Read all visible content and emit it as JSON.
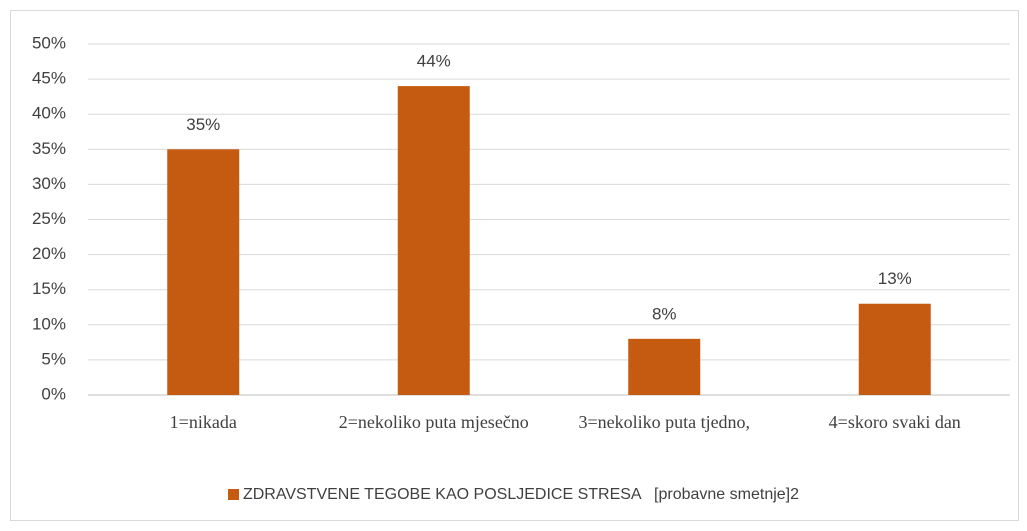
{
  "chart_data": {
    "type": "bar",
    "categories": [
      "1=nikada",
      "2=nekoliko puta mjesečno",
      "3=nekoliko puta tjedno,",
      "4=skoro svaki dan"
    ],
    "series": [
      {
        "name": "ZDRAVSTVENE TEGOBE KAO POSLJEDICE STRESA   [probavne smetnje]2",
        "color": "#c55a11",
        "values": [
          35,
          44,
          8,
          13
        ],
        "value_labels": [
          "35%",
          "44%",
          "8%",
          "13%"
        ]
      }
    ],
    "ylim": [
      0,
      50
    ],
    "yticks": [
      {
        "value": 0,
        "label": "0%"
      },
      {
        "value": 5,
        "label": "5%"
      },
      {
        "value": 10,
        "label": "10%"
      },
      {
        "value": 15,
        "label": "15%"
      },
      {
        "value": 20,
        "label": "20%"
      },
      {
        "value": 25,
        "label": "25%"
      },
      {
        "value": 30,
        "label": "30%"
      },
      {
        "value": 35,
        "label": "35%"
      },
      {
        "value": 40,
        "label": "40%"
      },
      {
        "value": 45,
        "label": "45%"
      },
      {
        "value": 50,
        "label": "50%"
      }
    ],
    "grid": true,
    "legend": "bottom"
  }
}
